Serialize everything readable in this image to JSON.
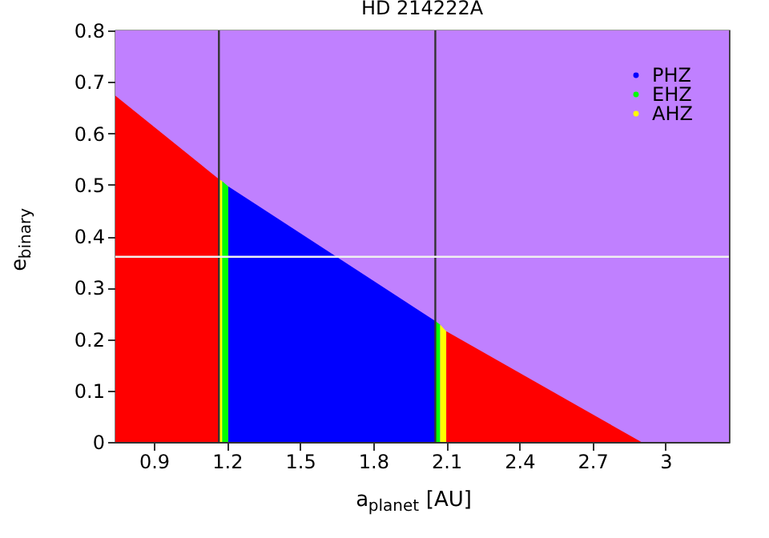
{
  "chart_data": {
    "type": "area",
    "title": "HD 214222A",
    "xlabel": "a$_{planet}$ [AU]",
    "ylabel": "e$_{binary}$",
    "xlim": [
      0.742,
      3.26
    ],
    "ylim": [
      0,
      0.8
    ],
    "xticks": [
      0.9,
      1.2,
      1.5,
      1.8,
      2.1,
      2.4,
      2.7,
      3
    ],
    "yticks": [
      0,
      0.1,
      0.2,
      0.3,
      0.4,
      0.5,
      0.6,
      0.7,
      0.8
    ],
    "grid": false,
    "legend": "top right",
    "series": [
      {
        "name": "PHZ",
        "color": "#0000ff",
        "x": [
          1.205,
          2.055
        ],
        "values": [
          0.497,
          0.235
        ]
      },
      {
        "name": "EHZ",
        "color": "#00ff00",
        "x": [
          1.18,
          1.205
        ],
        "values": [
          0.507,
          0.497
        ]
      },
      {
        "name": "AHZ",
        "color": "#ffff00",
        "x": [
          1.167,
          1.18
        ],
        "values": [
          0.511,
          0.507
        ]
      },
      {
        "color": "#ff0000",
        "x": [
          0.742,
          1.167
        ],
        "values": [
          0.673,
          0.511
        ]
      },
      {
        "color": "#00ff00",
        "x": [
          2.055,
          2.075
        ],
        "values": [
          0.235,
          0.228
        ]
      },
      {
        "color": "#ffff00",
        "x": [
          2.075,
          2.1
        ],
        "values": [
          0.228,
          0.215
        ]
      },
      {
        "color": "#ff0000",
        "x": [
          2.1,
          2.9
        ],
        "values": [
          0.215,
          0
        ]
      }
    ],
    "bands": [
      {
        "axis": "x",
        "from": 0.742,
        "to": 3.26,
        "color": "#c080ff"
      }
    ],
    "ref_lines": [
      {
        "axis": "x",
        "value": 1.167,
        "color": "#333333"
      },
      {
        "axis": "x",
        "value": 2.055,
        "color": "#333333"
      },
      {
        "axis": "y",
        "value": 0.36,
        "color": "#f0f0f0"
      }
    ]
  }
}
